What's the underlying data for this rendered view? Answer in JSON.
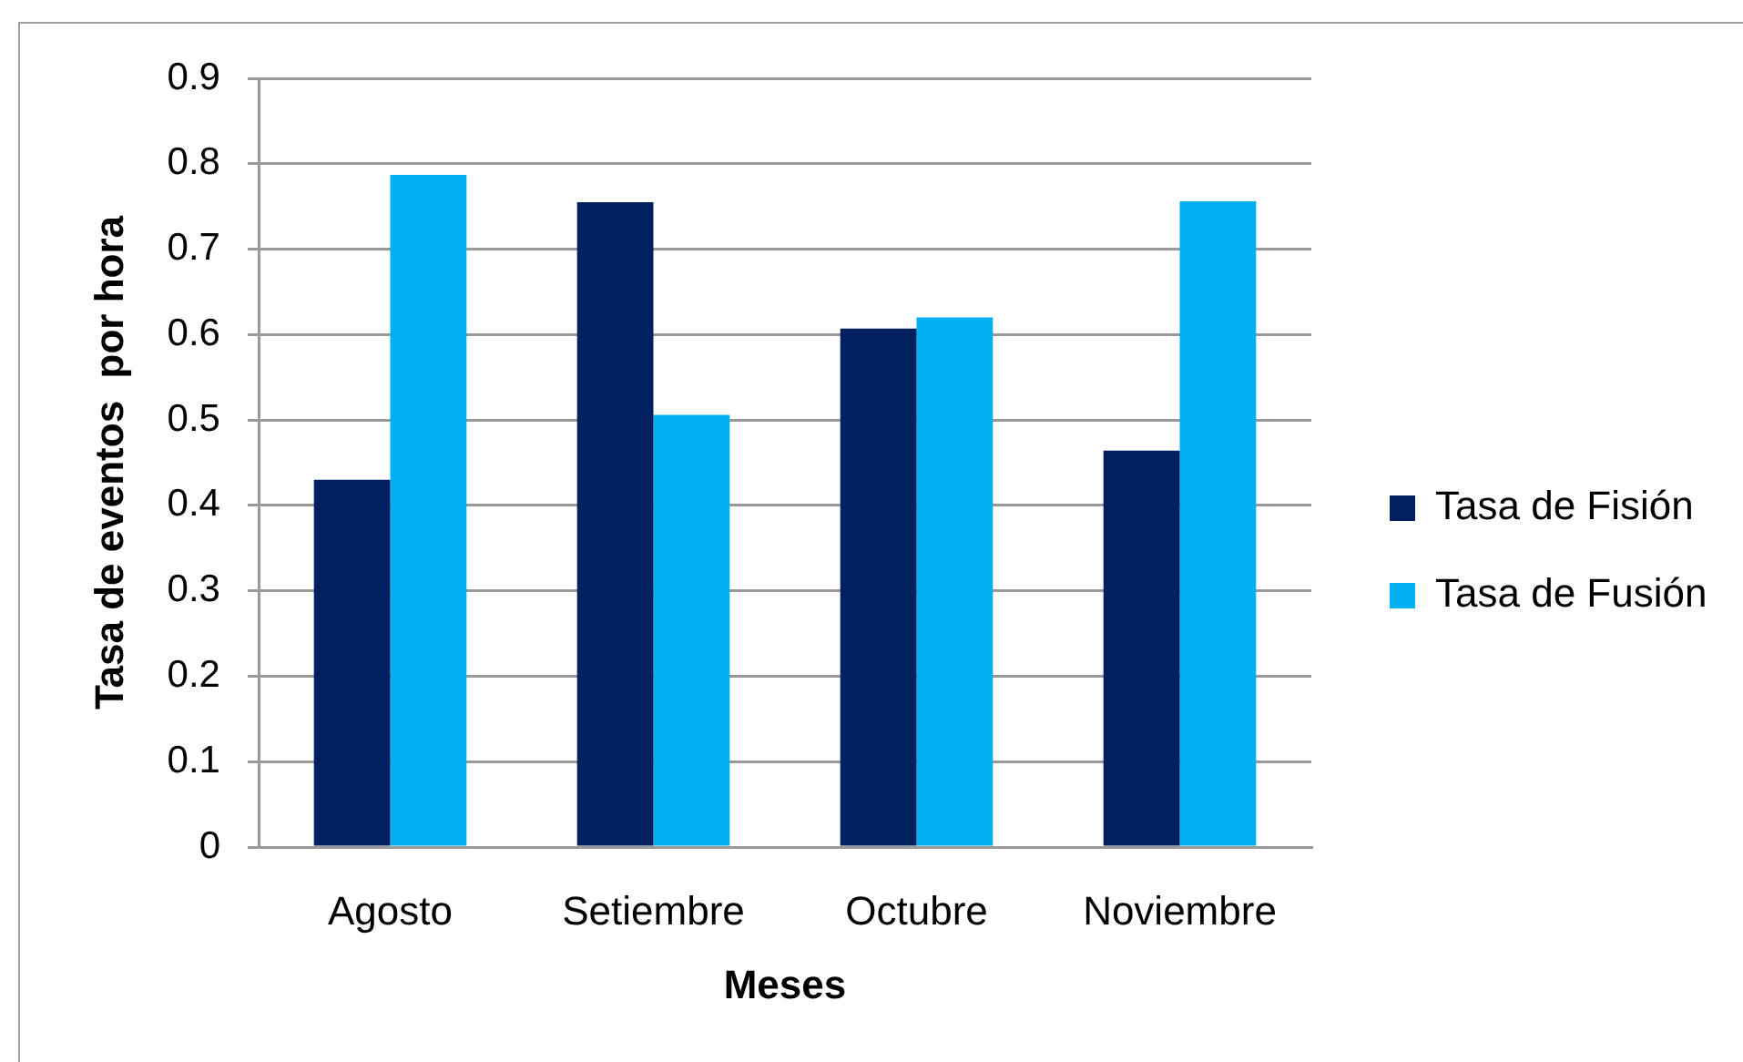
{
  "chart_data": {
    "type": "bar",
    "xlabel": "Meses",
    "ylabel": "Tasa de eventos  por hora",
    "categories": [
      "Agosto",
      "Setiembre",
      "Octubre",
      "Noviembre"
    ],
    "series": [
      {
        "name": "Tasa de Fisión",
        "color": "#002060",
        "values": [
          0.43,
          0.755,
          0.607,
          0.464
        ]
      },
      {
        "name": "Tasa de Fusión",
        "color": "#00b0f0",
        "values": [
          0.787,
          0.506,
          0.62,
          0.756
        ]
      }
    ],
    "ylim": [
      0,
      0.9
    ],
    "yticks": [
      0,
      0.1,
      0.2,
      0.3,
      0.4,
      0.5,
      0.6,
      0.7,
      0.8,
      0.9
    ],
    "grid": "y",
    "legend": "right"
  }
}
